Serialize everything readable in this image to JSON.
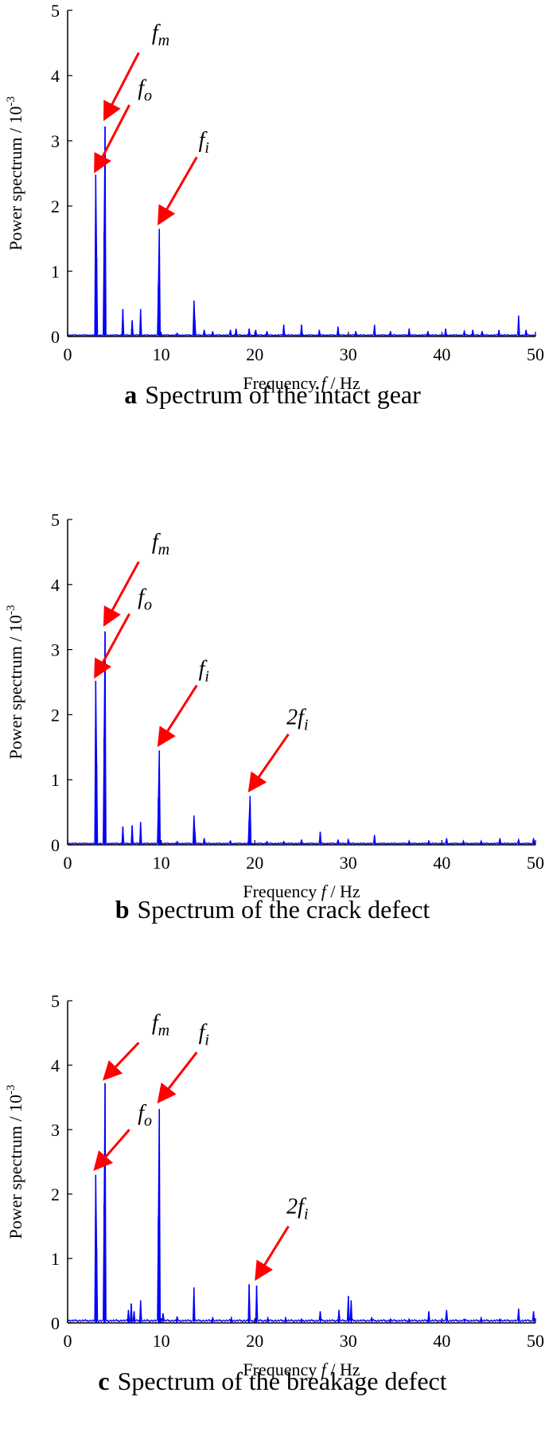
{
  "chart_data": [
    {
      "type": "line",
      "panel_letter": "a",
      "caption": "Spectrum of the intact gear",
      "xlabel": "Frequency f / Hz",
      "ylabel": "Power spectrum / 10-3",
      "xlim": [
        0,
        50
      ],
      "ylim": [
        0,
        5
      ],
      "xticks": [
        "0",
        "10",
        "20",
        "30",
        "40",
        "50"
      ],
      "yticks": [
        "0",
        "1",
        "2",
        "3",
        "4",
        "5"
      ],
      "grid": false,
      "series": [
        {
          "color": "#0000ff",
          "peaks": [
            {
              "x": 3.0,
              "y": 2.48
            },
            {
              "x": 3.1,
              "y": 1.2
            },
            {
              "x": 3.9,
              "y": 1.6
            },
            {
              "x": 4.0,
              "y": 3.22
            },
            {
              "x": 5.9,
              "y": 0.42
            },
            {
              "x": 6.9,
              "y": 0.25
            },
            {
              "x": 7.8,
              "y": 0.42
            },
            {
              "x": 9.7,
              "y": 0.8
            },
            {
              "x": 9.8,
              "y": 1.65
            },
            {
              "x": 11.7,
              "y": 0.05
            },
            {
              "x": 13.5,
              "y": 0.55
            },
            {
              "x": 13.6,
              "y": 0.25
            },
            {
              "x": 14.6,
              "y": 0.1
            },
            {
              "x": 15.5,
              "y": 0.08
            },
            {
              "x": 17.4,
              "y": 0.1
            },
            {
              "x": 18.0,
              "y": 0.12
            },
            {
              "x": 19.4,
              "y": 0.12
            },
            {
              "x": 20.1,
              "y": 0.1
            },
            {
              "x": 21.3,
              "y": 0.08
            },
            {
              "x": 23.1,
              "y": 0.18
            },
            {
              "x": 25.0,
              "y": 0.18
            },
            {
              "x": 26.9,
              "y": 0.1
            },
            {
              "x": 28.9,
              "y": 0.15
            },
            {
              "x": 30.8,
              "y": 0.08
            },
            {
              "x": 32.8,
              "y": 0.18
            },
            {
              "x": 34.5,
              "y": 0.08
            },
            {
              "x": 36.5,
              "y": 0.12
            },
            {
              "x": 38.5,
              "y": 0.08
            },
            {
              "x": 40.4,
              "y": 0.12
            },
            {
              "x": 42.4,
              "y": 0.08
            },
            {
              "x": 43.3,
              "y": 0.1
            },
            {
              "x": 44.3,
              "y": 0.08
            },
            {
              "x": 46.1,
              "y": 0.1
            },
            {
              "x": 48.2,
              "y": 0.32
            },
            {
              "x": 49.0,
              "y": 0.1
            }
          ],
          "baseline": 0.03
        }
      ],
      "annotations": [
        {
          "label": "f",
          "sub": "m",
          "text_x": 9.0,
          "text_y": 4.55,
          "tail_x": 7.6,
          "tail_y": 4.35,
          "head_x": 4.0,
          "head_y": 3.35
        },
        {
          "label": "f",
          "sub": "o",
          "text_x": 7.5,
          "text_y": 3.7,
          "tail_x": 6.6,
          "tail_y": 3.55,
          "head_x": 3.0,
          "head_y": 2.55
        },
        {
          "label": "f",
          "sub": "i",
          "text_x": 14.0,
          "text_y": 2.9,
          "tail_x": 13.8,
          "tail_y": 2.75,
          "head_x": 9.8,
          "head_y": 1.75
        }
      ]
    },
    {
      "type": "line",
      "panel_letter": "b",
      "caption": "Spectrum of the crack defect",
      "xlabel": "Frequency f / Hz",
      "ylabel": "Power spectrum / 10-3",
      "xlim": [
        0,
        50
      ],
      "ylim": [
        0,
        5
      ],
      "xticks": [
        "0",
        "10",
        "20",
        "30",
        "40",
        "50"
      ],
      "yticks": [
        "0",
        "1",
        "2",
        "3",
        "4",
        "5"
      ],
      "grid": false,
      "series": [
        {
          "color": "#0000ff",
          "peaks": [
            {
              "x": 3.0,
              "y": 2.52
            },
            {
              "x": 3.1,
              "y": 1.25
            },
            {
              "x": 3.9,
              "y": 1.65
            },
            {
              "x": 4.0,
              "y": 3.28
            },
            {
              "x": 5.9,
              "y": 0.28
            },
            {
              "x": 6.9,
              "y": 0.3
            },
            {
              "x": 7.8,
              "y": 0.35
            },
            {
              "x": 9.7,
              "y": 0.72
            },
            {
              "x": 9.8,
              "y": 1.45
            },
            {
              "x": 11.7,
              "y": 0.05
            },
            {
              "x": 13.5,
              "y": 0.45
            },
            {
              "x": 13.6,
              "y": 0.2
            },
            {
              "x": 14.6,
              "y": 0.1
            },
            {
              "x": 17.4,
              "y": 0.06
            },
            {
              "x": 19.4,
              "y": 0.38
            },
            {
              "x": 19.5,
              "y": 0.75
            },
            {
              "x": 21.3,
              "y": 0.05
            },
            {
              "x": 23.1,
              "y": 0.05
            },
            {
              "x": 25.0,
              "y": 0.08
            },
            {
              "x": 27.0,
              "y": 0.2
            },
            {
              "x": 28.9,
              "y": 0.08
            },
            {
              "x": 30.0,
              "y": 0.08
            },
            {
              "x": 32.8,
              "y": 0.15
            },
            {
              "x": 36.5,
              "y": 0.06
            },
            {
              "x": 38.6,
              "y": 0.06
            },
            {
              "x": 40.5,
              "y": 0.1
            },
            {
              "x": 42.3,
              "y": 0.06
            },
            {
              "x": 44.2,
              "y": 0.06
            },
            {
              "x": 46.2,
              "y": 0.1
            },
            {
              "x": 48.2,
              "y": 0.08
            },
            {
              "x": 49.8,
              "y": 0.1
            }
          ],
          "baseline": 0.03
        }
      ],
      "annotations": [
        {
          "label": "f",
          "sub": "m",
          "text_x": 9.0,
          "text_y": 4.55,
          "tail_x": 7.6,
          "tail_y": 4.35,
          "head_x": 4.0,
          "head_y": 3.4
        },
        {
          "label": "f",
          "sub": "o",
          "text_x": 7.5,
          "text_y": 3.7,
          "tail_x": 6.6,
          "tail_y": 3.55,
          "head_x": 3.0,
          "head_y": 2.6
        },
        {
          "label": "f",
          "sub": "i",
          "text_x": 14.0,
          "text_y": 2.6,
          "tail_x": 13.8,
          "tail_y": 2.45,
          "head_x": 9.8,
          "head_y": 1.55
        },
        {
          "label": "2f",
          "sub": "i",
          "text_x": 23.4,
          "text_y": 1.85,
          "tail_x": 23.6,
          "tail_y": 1.7,
          "head_x": 19.5,
          "head_y": 0.85
        }
      ]
    },
    {
      "type": "line",
      "panel_letter": "c",
      "caption": "Spectrum of the breakage defect",
      "xlabel": "Frequency f / Hz",
      "ylabel": "Power spectrum / 10-3",
      "xlim": [
        0,
        50
      ],
      "ylim": [
        0,
        5
      ],
      "xticks": [
        "0",
        "10",
        "20",
        "30",
        "40",
        "50"
      ],
      "yticks": [
        "0",
        "1",
        "2",
        "3",
        "4",
        "5"
      ],
      "grid": false,
      "series": [
        {
          "color": "#0000ff",
          "peaks": [
            {
              "x": 3.0,
              "y": 2.3
            },
            {
              "x": 3.1,
              "y": 1.15
            },
            {
              "x": 3.9,
              "y": 1.85
            },
            {
              "x": 4.0,
              "y": 3.72
            },
            {
              "x": 6.5,
              "y": 0.2
            },
            {
              "x": 6.8,
              "y": 0.3
            },
            {
              "x": 7.1,
              "y": 0.18
            },
            {
              "x": 7.8,
              "y": 0.35
            },
            {
              "x": 9.7,
              "y": 1.65
            },
            {
              "x": 9.8,
              "y": 3.32
            },
            {
              "x": 10.2,
              "y": 0.15
            },
            {
              "x": 11.7,
              "y": 0.1
            },
            {
              "x": 13.5,
              "y": 0.55
            },
            {
              "x": 15.5,
              "y": 0.08
            },
            {
              "x": 17.5,
              "y": 0.08
            },
            {
              "x": 19.4,
              "y": 0.6
            },
            {
              "x": 20.2,
              "y": 0.58
            },
            {
              "x": 21.4,
              "y": 0.08
            },
            {
              "x": 23.3,
              "y": 0.08
            },
            {
              "x": 25.0,
              "y": 0.06
            },
            {
              "x": 27.0,
              "y": 0.18
            },
            {
              "x": 29.0,
              "y": 0.2
            },
            {
              "x": 30.0,
              "y": 0.42
            },
            {
              "x": 30.3,
              "y": 0.35
            },
            {
              "x": 32.5,
              "y": 0.08
            },
            {
              "x": 34.5,
              "y": 0.06
            },
            {
              "x": 36.5,
              "y": 0.06
            },
            {
              "x": 38.6,
              "y": 0.18
            },
            {
              "x": 40.5,
              "y": 0.2
            },
            {
              "x": 42.4,
              "y": 0.06
            },
            {
              "x": 44.2,
              "y": 0.08
            },
            {
              "x": 46.2,
              "y": 0.06
            },
            {
              "x": 48.2,
              "y": 0.22
            },
            {
              "x": 49.8,
              "y": 0.18
            }
          ],
          "baseline": 0.05
        }
      ],
      "annotations": [
        {
          "label": "f",
          "sub": "m",
          "text_x": 9.0,
          "text_y": 4.55,
          "tail_x": 7.6,
          "tail_y": 4.35,
          "head_x": 4.0,
          "head_y": 3.8
        },
        {
          "label": "f",
          "sub": "o",
          "text_x": 7.5,
          "text_y": 3.15,
          "tail_x": 6.6,
          "tail_y": 3.0,
          "head_x": 3.0,
          "head_y": 2.4
        },
        {
          "label": "f",
          "sub": "i",
          "text_x": 14.0,
          "text_y": 4.4,
          "tail_x": 13.8,
          "tail_y": 4.2,
          "head_x": 9.8,
          "head_y": 3.45
        },
        {
          "label": "2f",
          "sub": "i",
          "text_x": 23.4,
          "text_y": 1.7,
          "tail_x": 23.6,
          "tail_y": 1.5,
          "head_x": 20.2,
          "head_y": 0.7
        }
      ]
    }
  ]
}
